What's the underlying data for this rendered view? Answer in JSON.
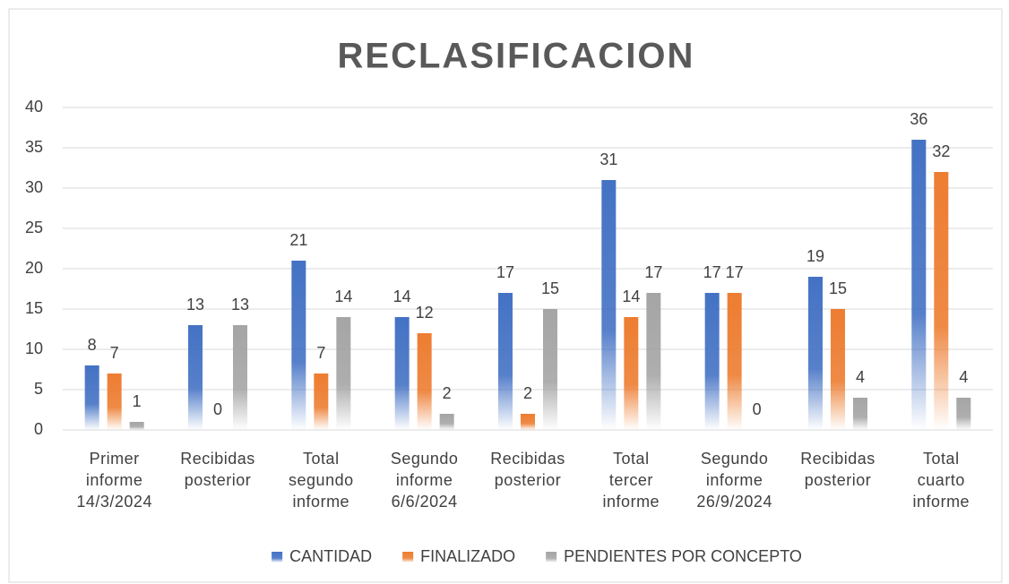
{
  "chart_data": {
    "type": "bar",
    "title": "RECLASIFICACION",
    "categories": [
      "Primer informe 14/3/2024",
      "Recibidas posterior",
      "Total segundo informe",
      "Segundo informe 6/6/2024",
      "Recibidas posterior",
      "Total tercer informe",
      "Segundo informe 26/9/2024",
      "Recibidas posterior",
      "Total cuarto informe"
    ],
    "series": [
      {
        "name": "CANTIDAD",
        "color": "#4472c4",
        "values": [
          8,
          13,
          21,
          14,
          17,
          31,
          17,
          19,
          36
        ]
      },
      {
        "name": "FINALIZADO",
        "color": "#ed7d31",
        "values": [
          7,
          0,
          7,
          12,
          2,
          14,
          17,
          15,
          32
        ]
      },
      {
        "name": "PENDIENTES POR CONCEPTO",
        "color": "#a5a5a5",
        "values": [
          1,
          13,
          14,
          2,
          15,
          17,
          0,
          4,
          4
        ]
      }
    ],
    "ylim": [
      0,
      40
    ],
    "yticks": [
      0,
      5,
      10,
      15,
      20,
      25,
      30,
      35,
      40
    ],
    "grid": true,
    "legend": "bottom"
  }
}
